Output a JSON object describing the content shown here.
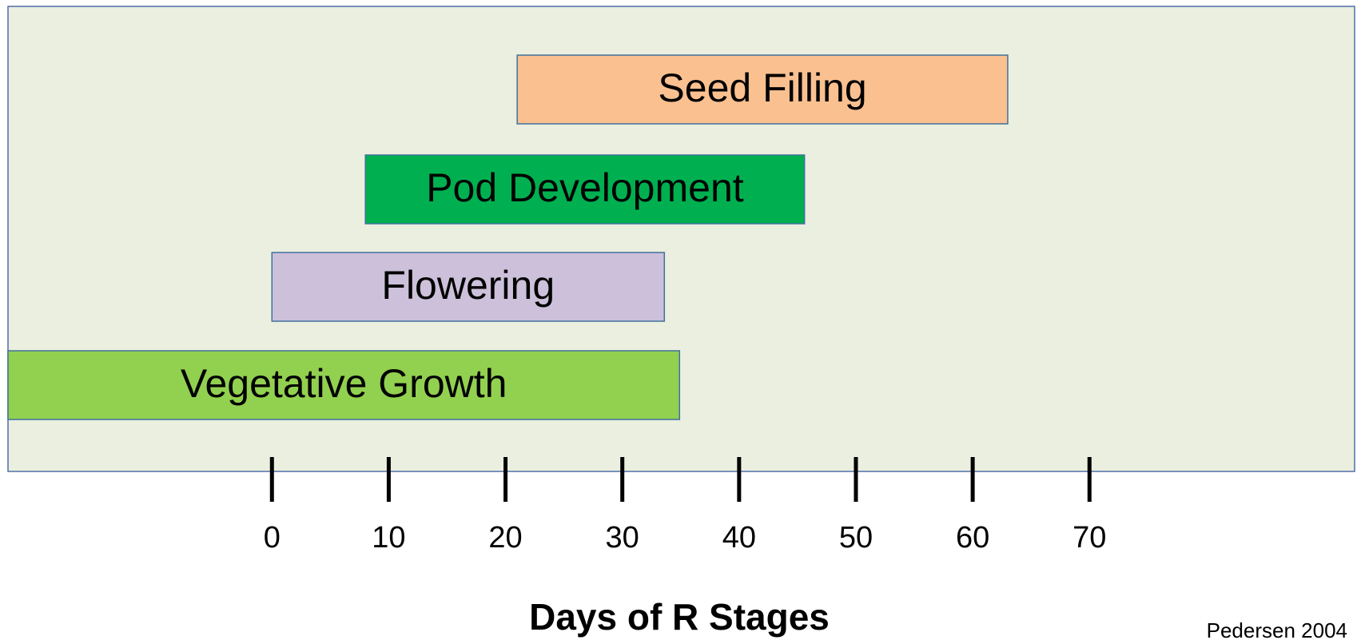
{
  "chart_data": {
    "type": "range-bar",
    "categories": [
      "Seed Filling",
      "Pod Development",
      "Flowering",
      "Vegetative Growth"
    ],
    "start": [
      21,
      8,
      0,
      -22.6
    ],
    "end": [
      63,
      45.6,
      33.6,
      34.9
    ],
    "colors": [
      "#fac090",
      "#00b050",
      "#ccc0da",
      "#92d050"
    ],
    "xlim": [
      -22.6,
      92.7
    ],
    "xticks": [
      0,
      10,
      20,
      30,
      40,
      50,
      60,
      70
    ],
    "xlabel": "Days of R Stages",
    "annotation": "Pedersen 2004"
  }
}
